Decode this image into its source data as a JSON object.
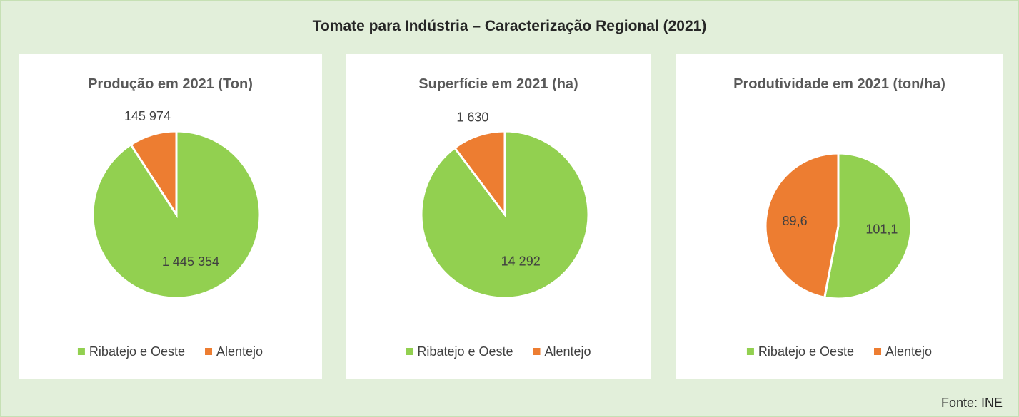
{
  "title": "Tomate para Indústria – Caracterização Regional (2021)",
  "source": "Fonte: INE",
  "chart_data": [
    {
      "type": "pie",
      "title": "Produção em 2021 (Ton)",
      "categories": [
        "Ribatejo e Oeste",
        "Alentejo"
      ],
      "values": [
        1445354,
        145974
      ],
      "value_labels": [
        "1 445 354",
        "145 974"
      ],
      "colors": [
        "#92d050",
        "#ed7d31"
      ],
      "legend": "bottom"
    },
    {
      "type": "pie",
      "title": "Superfície em 2021 (ha)",
      "categories": [
        "Ribatejo e Oeste",
        "Alentejo"
      ],
      "values": [
        14292,
        1630
      ],
      "value_labels": [
        "14 292",
        "1 630"
      ],
      "colors": [
        "#92d050",
        "#ed7d31"
      ],
      "legend": "bottom"
    },
    {
      "type": "pie",
      "title": "Produtividade em 2021 (ton/ha)",
      "categories": [
        "Ribatejo e Oeste",
        "Alentejo"
      ],
      "values": [
        101.1,
        89.6
      ],
      "value_labels": [
        "101,1",
        "89,6"
      ],
      "colors": [
        "#92d050",
        "#ed7d31"
      ],
      "legend": "bottom"
    }
  ]
}
